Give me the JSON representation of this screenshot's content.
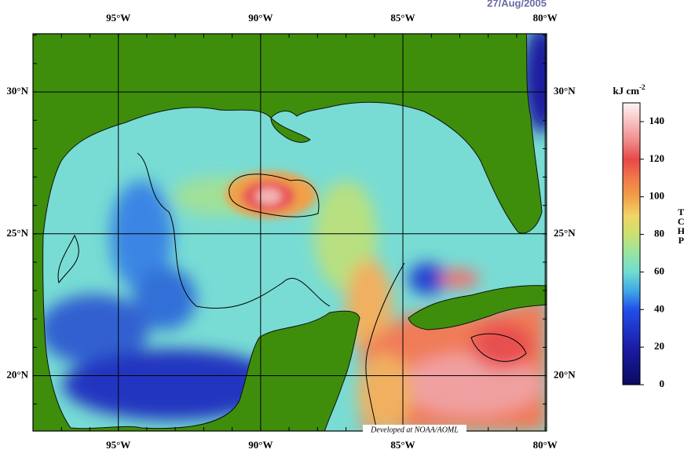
{
  "map": {
    "title": "27/Aug/2005",
    "xlim": [
      -98,
      -79.95
    ],
    "ylim": [
      18.05,
      32.05
    ],
    "lon_ticks": [
      {
        "value": -95,
        "label": "95°W"
      },
      {
        "value": -90,
        "label": "90°W"
      },
      {
        "value": -85,
        "label": "85°W"
      },
      {
        "value": -80,
        "label": "80°W"
      }
    ],
    "lat_ticks": [
      {
        "value": 20,
        "label": "20°N"
      },
      {
        "value": 25,
        "label": "25°N"
      },
      {
        "value": 30,
        "label": "30°N"
      }
    ],
    "credit": "Developed at NOAA/AOML"
  },
  "colorbar": {
    "unit": "kJ cm",
    "unit_exponent": "-2",
    "label": "TCHP",
    "lim": [
      0,
      150
    ],
    "ticks": [
      0,
      20,
      40,
      60,
      80,
      100,
      120,
      140
    ],
    "colormap": [
      [
        0,
        "#0a0a60"
      ],
      [
        20,
        "#1c1ca8"
      ],
      [
        40,
        "#2050e8"
      ],
      [
        50,
        "#40a8e8"
      ],
      [
        60,
        "#70dcd0"
      ],
      [
        70,
        "#98e4a0"
      ],
      [
        80,
        "#cce070"
      ],
      [
        90,
        "#f2d468"
      ],
      [
        100,
        "#f0a048"
      ],
      [
        110,
        "#f07848"
      ],
      [
        120,
        "#e84848"
      ],
      [
        130,
        "#f08c8c"
      ],
      [
        150,
        "#fff4f4"
      ]
    ]
  }
}
